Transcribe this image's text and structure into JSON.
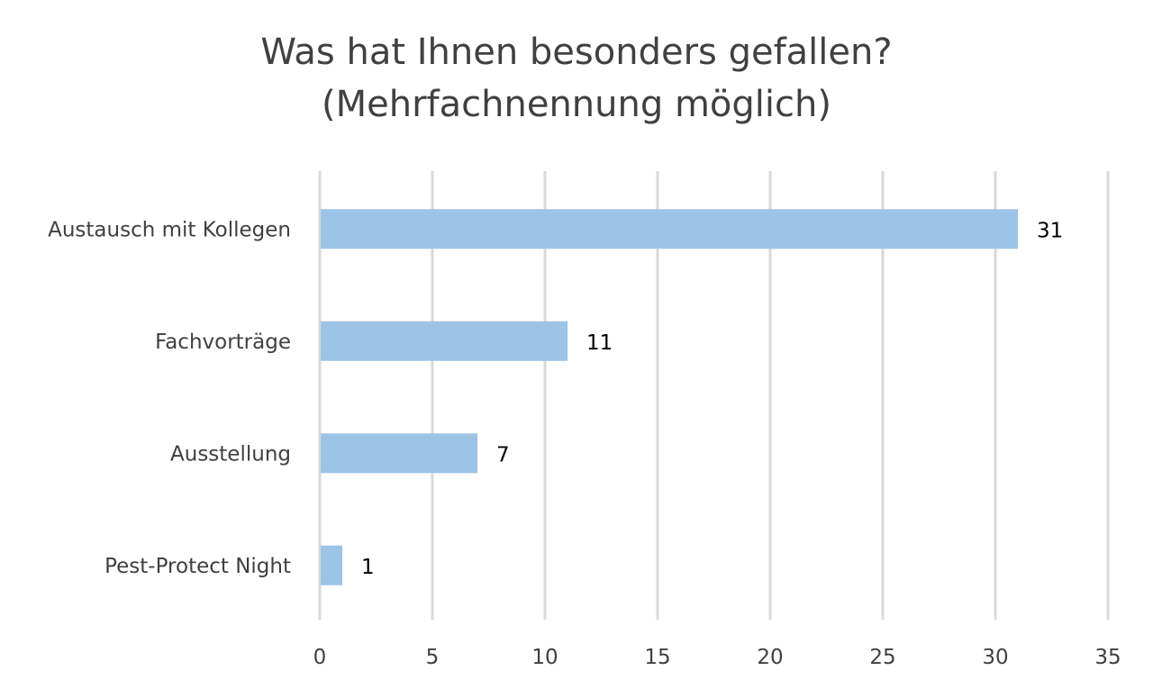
{
  "chart_data": {
    "type": "bar",
    "orientation": "horizontal",
    "title": [
      "Was hat Ihnen besonders gefallen?",
      "(Mehrfachnennung möglich)"
    ],
    "categories": [
      "Austausch mit Kollegen",
      "Fachvorträge",
      "Ausstellung",
      "Pest-Protect Night"
    ],
    "values": [
      31,
      11,
      7,
      1
    ],
    "xlim": [
      0,
      35
    ],
    "xticks": [
      0,
      5,
      10,
      15,
      20,
      25,
      30,
      35
    ],
    "grid": "vertical",
    "data_labels": true,
    "xlabel": "",
    "ylabel": "",
    "colors": {
      "bar": "#9DC3E6",
      "grid": "#D9D9D9",
      "text": "#404040"
    }
  }
}
